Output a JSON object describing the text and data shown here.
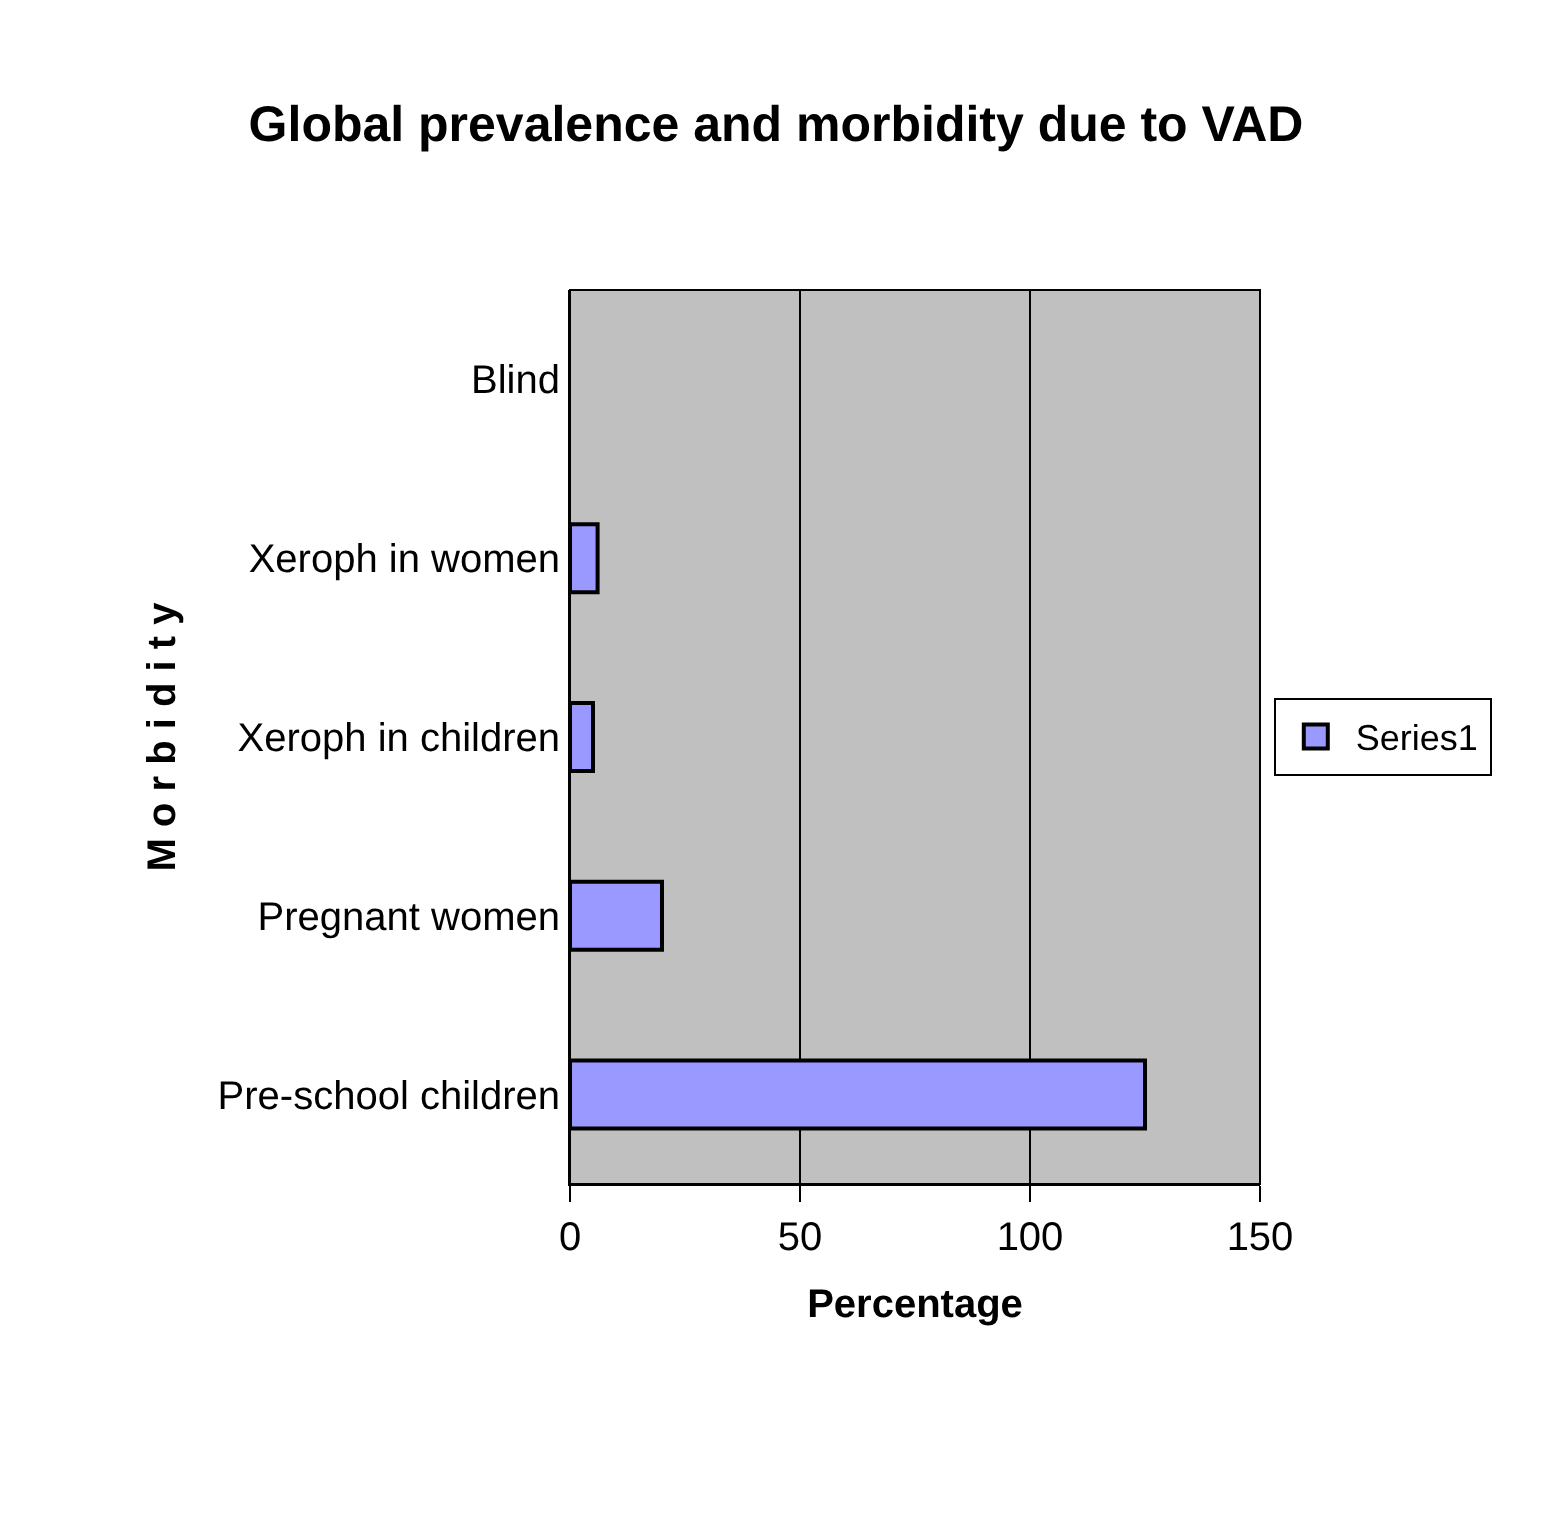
{
  "chart_data": {
    "type": "bar",
    "orientation": "horizontal",
    "title": "Global prevalence and morbidity due to VAD",
    "xlabel": "Percentage",
    "ylabel": "M o r b i d i t y",
    "categories": [
      "Blind",
      "Xeroph in women",
      "Xeroph in children",
      "Pregnant women",
      "Pre-school children"
    ],
    "series": [
      {
        "name": "Series1",
        "color": "#9999ff",
        "values": [
          null,
          6,
          5,
          20,
          125
        ]
      }
    ],
    "xlim": [
      0,
      150
    ],
    "xticks": [
      0,
      50,
      100,
      150
    ],
    "grid": "x",
    "legend": "right"
  }
}
